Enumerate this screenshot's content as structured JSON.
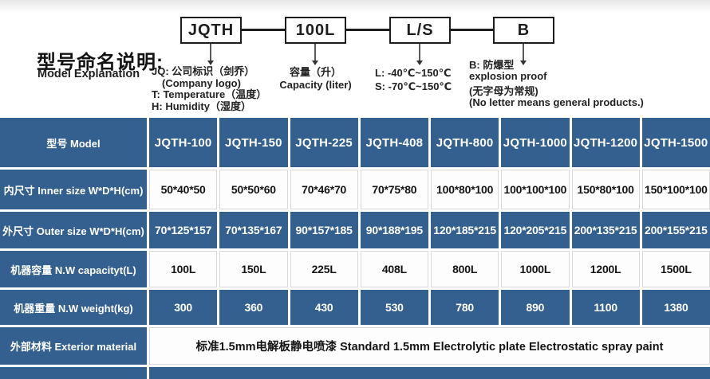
{
  "colors": {
    "table_blue": "#33608f",
    "light_cell": "#fdfdfd",
    "light_border": "#d8d8d8",
    "diagram_ink": "#1d1d1d"
  },
  "diagram": {
    "title_zh": "型号命名说明:",
    "title_en": "Model Explanation",
    "boxes": [
      {
        "label": "JQTH",
        "notes": [
          "JQ: 公司标识（剑乔）",
          "(Company logo)",
          "T: Temperature（温度）",
          "H: Humidity（湿度）"
        ]
      },
      {
        "label": "100L",
        "notes": [
          "容量（升）",
          "Capacity (liter)"
        ]
      },
      {
        "label": "L/S",
        "notes": [
          "L: -40℃~150℃",
          "S: -70℃~150℃"
        ]
      },
      {
        "label": "B",
        "notes": [
          "B: 防爆型",
          "explosion proof",
          "(无字母为常规)",
          "(No letter means general products.)"
        ]
      }
    ]
  },
  "table": {
    "header": {
      "label": "型号 Model",
      "models": [
        "JQTH-100",
        "JQTH-150",
        "JQTH-225",
        "JQTH-408",
        "JQTH-800",
        "JQTH-1000",
        "JQTH-1200",
        "JQTH-1500"
      ]
    },
    "rows": [
      {
        "label": "内尺寸 Inner size W*D*H(cm)",
        "tone": "light",
        "values": [
          "50*40*50",
          "50*50*60",
          "70*46*70",
          "70*75*80",
          "100*80*100",
          "100*100*100",
          "150*80*100",
          "150*100*100"
        ]
      },
      {
        "label": "外尺寸 Outer size W*D*H(cm)",
        "tone": "dark",
        "values": [
          "70*125*157",
          "70*135*167",
          "90*157*185",
          "90*188*195",
          "120*185*215",
          "120*205*215",
          "200*135*215",
          "200*155*215"
        ]
      },
      {
        "label": "机器容量 N.W capacityt(L)",
        "tone": "light",
        "values": [
          "100L",
          "150L",
          "225L",
          "408L",
          "800L",
          "1000L",
          "1200L",
          "1500L"
        ]
      },
      {
        "label": "机器重量 N.W weight(kg)",
        "tone": "dark",
        "values": [
          "300",
          "360",
          "430",
          "530",
          "780",
          "890",
          "1100",
          "1380"
        ]
      },
      {
        "label": "外部材料 Exterior material",
        "tone": "light",
        "merged_value": "标准1.5mm电解板静电喷漆  Standard 1.5mm Electrolytic plate Electrostatic spray paint"
      },
      {
        "label": "",
        "tone": "dark",
        "merged_value": "",
        "partial": true
      }
    ]
  }
}
